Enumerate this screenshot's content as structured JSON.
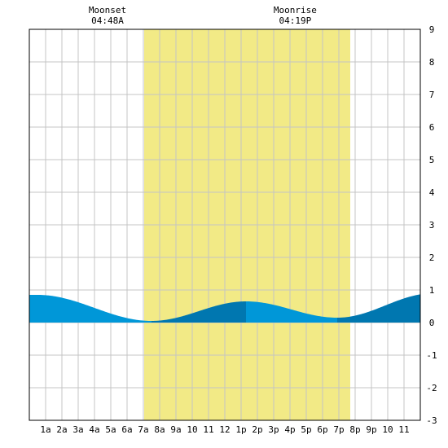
{
  "moon_events": [
    {
      "label": "Moonset",
      "time": "04:48A",
      "hour": 4.8
    },
    {
      "label": "Moonrise",
      "time": "04:19P",
      "hour": 16.32
    }
  ],
  "chart_data": {
    "type": "area",
    "title": "",
    "xlabel": "",
    "ylabel": "",
    "xlim": [
      0,
      24
    ],
    "ylim": [
      -3,
      9
    ],
    "grid": true,
    "x_tick_labels": [
      "1a",
      "2a",
      "3a",
      "4a",
      "5a",
      "6a",
      "7a",
      "8a",
      "9a",
      "10",
      "11",
      "12",
      "1p",
      "2p",
      "3p",
      "4p",
      "5p",
      "6p",
      "7p",
      "8p",
      "9p",
      "10",
      "11"
    ],
    "y_ticks": [
      -3,
      -2,
      -1,
      0,
      1,
      2,
      3,
      4,
      5,
      6,
      7,
      8,
      9
    ],
    "daylight": {
      "start": 7.05,
      "end": 19.7,
      "color": "#f2ea86"
    },
    "tide_colors": {
      "rising": "#0077b0",
      "falling": "#0097d8"
    },
    "tide_extrema": [
      {
        "x": 0.5,
        "y": 0.85
      },
      {
        "x": 7.5,
        "y": 0.05
      },
      {
        "x": 13.3,
        "y": 0.65
      },
      {
        "x": 18.9,
        "y": 0.15
      },
      {
        "x": 24.8,
        "y": 0.9
      }
    ],
    "series": [
      {
        "x": [
          0,
          1,
          2,
          3,
          4,
          5,
          6,
          7,
          8,
          9,
          10,
          11,
          12,
          13,
          14,
          15,
          16,
          17,
          18,
          19,
          20,
          21,
          22,
          23,
          24
        ],
        "y": [
          0.84,
          0.83,
          0.74,
          0.59,
          0.42,
          0.25,
          0.12,
          0.06,
          0.06,
          0.14,
          0.28,
          0.44,
          0.58,
          0.65,
          0.61,
          0.51,
          0.35,
          0.22,
          0.15,
          0.15,
          0.23,
          0.41,
          0.6,
          0.76,
          0.86
        ]
      }
    ]
  }
}
